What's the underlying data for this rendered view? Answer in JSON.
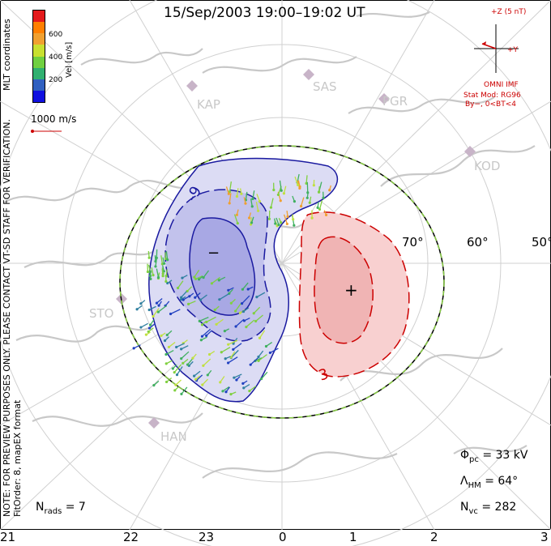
{
  "title": "15/Sep/2003  19:00–19:02  UT",
  "mlt_labels": [
    "21",
    "22",
    "23",
    "0",
    "1",
    "2",
    "3"
  ],
  "latitude_labels": [
    "70°",
    "60°",
    "50°"
  ],
  "sites": [
    "KAP",
    "SAS",
    "PGR",
    "KOD",
    "STO",
    "HAN"
  ],
  "colorbar": {
    "label": "Vel [m/s]",
    "ticks": [
      "600",
      "400",
      "200"
    ],
    "colors": [
      "#e41a1c",
      "#ff7f00",
      "#f0a030",
      "#c8e030",
      "#70d040",
      "#30b070",
      "#3060c0",
      "#1010e0"
    ]
  },
  "reference_vector": "1000 m/s",
  "side_notes": {
    "preview": "NOTE: FOR PREVIEW PURPOSES ONLY. PLEASE CONTACT VT-SD STAFF FOR VERIFICATION.",
    "fit": "FitOrder: 8, mapEX format",
    "coords": "MLT coordinates"
  },
  "imf": {
    "z_label": "+Z (5 nT)",
    "y_label": "+Y",
    "source": "OMNI IMF",
    "model": "Stat Mod: RG96",
    "conditions": "By−, 0<BT<4"
  },
  "stats": {
    "phi_pc": "Φ",
    "phi_pc_sub": "pc",
    "phi_pc_value": "= 33 kV",
    "lambda_hm": "Λ",
    "lambda_hm_sub": "HM",
    "lambda_hm_value": "= 64°",
    "n_vc": "N",
    "n_vc_sub": "vc",
    "n_vc_value": "= 282",
    "n_rads": "N",
    "n_rads_sub": "rads",
    "n_rads_value": "= 7"
  },
  "contours": {
    "negative_label": "−",
    "positive_label": "+",
    "neg_contour_value": "-9",
    "pos_contour_value": "3"
  },
  "colors": {
    "negative": "#1a1aa0",
    "negative_fill": "#8e8ee0",
    "positive": "#cc0000",
    "positive_fill": "#f4b8b8",
    "hm_boundary": "#88cc44",
    "coast": "#c8c8c8"
  }
}
